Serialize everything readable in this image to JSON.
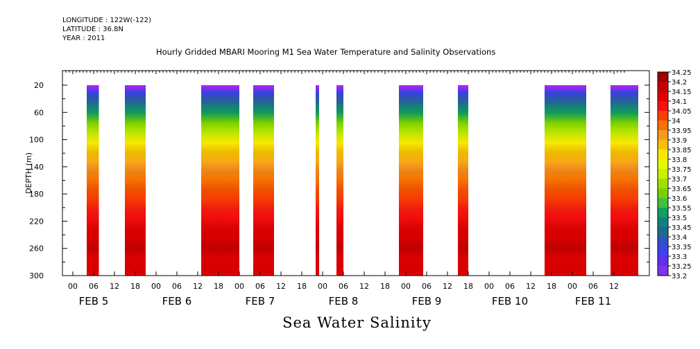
{
  "header": {
    "longitude": "LONGITUDE : 122W(-122)",
    "latitude": "LATITUDE : 36.8N",
    "year": "YEAR : 2011"
  },
  "chart_data": {
    "type": "heatmap",
    "title": "Hourly Gridded MBARI Mooring M1 Sea Water Temperature and Salinity Observations",
    "xlabel": "Sea Water Salinity",
    "ylabel": "DEPTH (m)",
    "ylim": [
      300,
      0
    ],
    "y_ticks": [
      20,
      60,
      100,
      140,
      180,
      220,
      260,
      300
    ],
    "x_hours_range": [
      -10,
      159
    ],
    "x_tick_labels": [
      "00",
      "06",
      "12",
      "18"
    ],
    "day_labels": [
      "FEB  5",
      "FEB  6",
      "FEB  7",
      "FEB  8",
      "FEB  9",
      "FEB 10",
      "FEB 11"
    ],
    "day_label_hours": [
      6,
      30,
      54,
      78,
      102,
      126,
      150
    ],
    "depth_range": [
      20,
      300
    ],
    "data_segments": [
      {
        "start": 4,
        "end": 7.5
      },
      {
        "start": 15,
        "end": 21
      },
      {
        "start": 37,
        "end": 48
      },
      {
        "start": 52,
        "end": 58
      },
      {
        "start": 70,
        "end": 71
      },
      {
        "start": 76,
        "end": 78
      },
      {
        "start": 94,
        "end": 101
      },
      {
        "start": 111,
        "end": 114
      },
      {
        "start": 136,
        "end": 148
      },
      {
        "start": 155,
        "end": 163
      }
    ],
    "salinity_profile": [
      {
        "depth": 20,
        "value": 33.2
      },
      {
        "depth": 30,
        "value": 33.35
      },
      {
        "depth": 45,
        "value": 33.45
      },
      {
        "depth": 60,
        "value": 33.55
      },
      {
        "depth": 75,
        "value": 33.65
      },
      {
        "depth": 90,
        "value": 33.75
      },
      {
        "depth": 105,
        "value": 33.85
      },
      {
        "depth": 120,
        "value": 33.9
      },
      {
        "depth": 140,
        "value": 33.95
      },
      {
        "depth": 160,
        "value": 34.0
      },
      {
        "depth": 185,
        "value": 34.05
      },
      {
        "depth": 210,
        "value": 34.1
      },
      {
        "depth": 235,
        "value": 34.15
      },
      {
        "depth": 260,
        "value": 34.2
      },
      {
        "depth": 275,
        "value": 34.15
      },
      {
        "depth": 300,
        "value": 34.15
      }
    ],
    "colorbar": {
      "levels": [
        "34.25",
        "34.2",
        "34.15",
        "34.1",
        "34.05",
        "34",
        "33.95",
        "33.9",
        "33.85",
        "33.8",
        "33.75",
        "33.7",
        "33.65",
        "33.6",
        "33.55",
        "33.5",
        "33.45",
        "33.4",
        "33.35",
        "33.3",
        "33.25",
        "33.2"
      ],
      "colors": [
        "#a00000",
        "#c80000",
        "#e00000",
        "#f81010",
        "#f84000",
        "#f87000",
        "#f89820",
        "#f8c000",
        "#f8e800",
        "#e8f800",
        "#c8f000",
        "#a0e000",
        "#78d000",
        "#40c040",
        "#10a060",
        "#108080",
        "#206890",
        "#3050c8",
        "#4040f0",
        "#6030f0",
        "#8030f0",
        "#c020f8"
      ]
    }
  }
}
